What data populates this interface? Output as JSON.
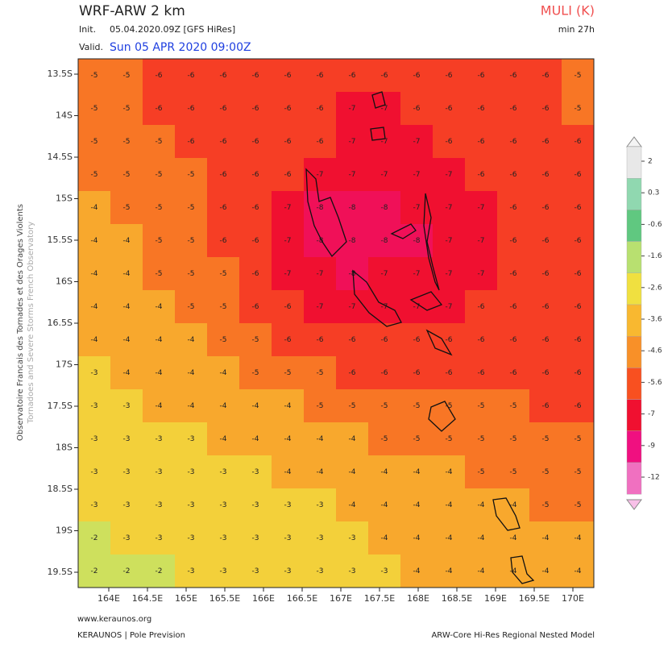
{
  "header": {
    "title": "WRF-ARW 2 km",
    "init_label": "Init.",
    "init_value": "05.04.2020.09Z [GFS HiRes]",
    "valid_label": "Valid.",
    "valid_value": "Sun 05 APR 2020 09:00Z",
    "parameter": "MULI (K)",
    "lead": "min 27h"
  },
  "side": {
    "line1": "Observatoire Francais des Tornades et des Orages Violents",
    "line2": "Tornadoes and Severe Storms French Observatory"
  },
  "map": {
    "lat_ticks": [
      "13.5S",
      "14S",
      "14.5S",
      "15S",
      "15.5S",
      "16S",
      "16.5S",
      "17S",
      "17.5S",
      "18S",
      "18.5S",
      "19S",
      "19.5S"
    ],
    "lon_ticks": [
      "164E",
      "164.5E",
      "165E",
      "165.5E",
      "166E",
      "166.5E",
      "167E",
      "167.5E",
      "168E",
      "168.5E",
      "169E",
      "169.5E",
      "170E"
    ],
    "field": [
      [
        -5,
        -5,
        -6,
        -6,
        -6,
        -6,
        -6,
        -6,
        -6,
        -6,
        -6,
        -6,
        -6,
        -6,
        -6,
        -5
      ],
      [
        -5,
        -5,
        -6,
        -6,
        -6,
        -6,
        -6,
        -6,
        -7,
        -7,
        -6,
        -6,
        -6,
        -6,
        -6,
        -5
      ],
      [
        -5,
        -5,
        -5,
        -6,
        -6,
        -6,
        -6,
        -6,
        -7,
        -7,
        -7,
        -6,
        -6,
        -6,
        -6,
        -6
      ],
      [
        -5,
        -5,
        -5,
        -5,
        -6,
        -6,
        -6,
        -7,
        -7,
        -7,
        -7,
        -7,
        -6,
        -6,
        -6,
        -6
      ],
      [
        -4,
        -5,
        -5,
        -5,
        -6,
        -6,
        -7,
        -8,
        -8,
        -8,
        -7,
        -7,
        -7,
        -6,
        -6,
        -6
      ],
      [
        -4,
        -4,
        -5,
        -5,
        -6,
        -6,
        -7,
        -8,
        -8,
        -8,
        -8,
        -7,
        -7,
        -6,
        -6,
        -6
      ],
      [
        -4,
        -4,
        -5,
        -5,
        -5,
        -6,
        -7,
        -7,
        -8,
        -7,
        -7,
        -7,
        -7,
        -6,
        -6,
        -6
      ],
      [
        -4,
        -4,
        -4,
        -5,
        -5,
        -6,
        -6,
        -7,
        -7,
        -7,
        -7,
        -7,
        -6,
        -6,
        -6,
        -6
      ],
      [
        -4,
        -4,
        -4,
        -4,
        -5,
        -5,
        -6,
        -6,
        -6,
        -6,
        -6,
        -6,
        -6,
        -6,
        -6,
        -6
      ],
      [
        -3,
        -4,
        -4,
        -4,
        -4,
        -5,
        -5,
        -5,
        -6,
        -6,
        -6,
        -6,
        -6,
        -6,
        -6,
        -6
      ],
      [
        -3,
        -3,
        -4,
        -4,
        -4,
        -4,
        -4,
        -5,
        -5,
        -5,
        -5,
        -5,
        -5,
        -5,
        -6,
        -6
      ],
      [
        -3,
        -3,
        -3,
        -3,
        -4,
        -4,
        -4,
        -4,
        -4,
        -5,
        -5,
        -5,
        -5,
        -5,
        -5,
        -5
      ],
      [
        -3,
        -3,
        -3,
        -3,
        -3,
        -3,
        -4,
        -4,
        -4,
        -4,
        -4,
        -4,
        -5,
        -5,
        -5,
        -5
      ],
      [
        -3,
        -3,
        -3,
        -3,
        -3,
        -3,
        -3,
        -3,
        -4,
        -4,
        -4,
        -4,
        -4,
        -4,
        -5,
        -5
      ],
      [
        -2,
        -3,
        -3,
        -3,
        -3,
        -3,
        -3,
        -3,
        -3,
        -4,
        -4,
        -4,
        -4,
        -4,
        -4,
        -4
      ],
      [
        -2,
        -2,
        -2,
        -3,
        -3,
        -3,
        -3,
        -3,
        -3,
        -3,
        -4,
        -4,
        -4,
        -4,
        -4,
        -4
      ]
    ]
  },
  "colorbar": {
    "ticks": [
      2,
      0.3,
      -0.6,
      -1.6,
      -2.6,
      -3.6,
      -4.6,
      -5.6,
      -7,
      -9,
      -12
    ],
    "colors": [
      "#e8e8e8",
      "#90d8b0",
      "#60c880",
      "#b8e070",
      "#f0e040",
      "#f8b830",
      "#f89028",
      "#f85020",
      "#f01030",
      "#f01080",
      "#f070c0"
    ]
  },
  "footer": {
    "site": "www.keraunos.org",
    "org": "KERAUNOS | Pole Prevision",
    "model": "ARW-Core Hi-Res Regional Nested Model"
  }
}
